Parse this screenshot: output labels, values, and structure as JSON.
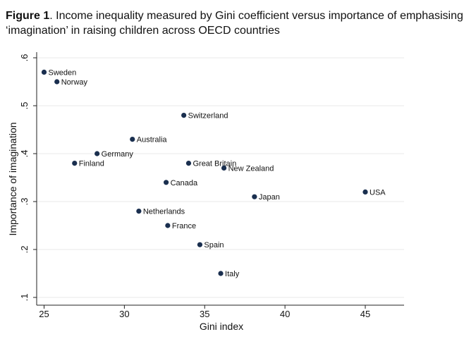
{
  "caption": {
    "label": "Figure 1",
    "text": ". Income inequality measured by Gini coefficient versus importance of emphasising ‘imagination’ in raising children across OECD countries"
  },
  "chart_data": {
    "type": "scatter",
    "title": "",
    "xlabel": "Gini index",
    "ylabel": "Importance of imagination",
    "xlim": [
      24.5,
      47.5
    ],
    "ylim": [
      0.09,
      0.62
    ],
    "xticks": [
      25,
      30,
      35,
      40,
      45
    ],
    "xtick_labels": [
      "25",
      "30",
      "35",
      "40",
      "45"
    ],
    "yticks": [
      0.1,
      0.2,
      0.3,
      0.4,
      0.5,
      0.6
    ],
    "ytick_labels": [
      ".1",
      ".2",
      ".3",
      ".4",
      ".5",
      ".6"
    ],
    "grid": "horizontal",
    "legend": "none",
    "marker_color": "#1a2f4f",
    "points": [
      {
        "label": "Sweden",
        "x": 25.0,
        "y": 0.57
      },
      {
        "label": "Norway",
        "x": 25.8,
        "y": 0.55
      },
      {
        "label": "Switzerland",
        "x": 33.7,
        "y": 0.48
      },
      {
        "label": "Australia",
        "x": 30.5,
        "y": 0.43
      },
      {
        "label": "Germany",
        "x": 28.3,
        "y": 0.4
      },
      {
        "label": "Finland",
        "x": 26.9,
        "y": 0.38
      },
      {
        "label": "Great Britain",
        "x": 34.0,
        "y": 0.38
      },
      {
        "label": "New Zealand",
        "x": 36.2,
        "y": 0.37
      },
      {
        "label": "Canada",
        "x": 32.6,
        "y": 0.34
      },
      {
        "label": "USA",
        "x": 45.0,
        "y": 0.32
      },
      {
        "label": "Japan",
        "x": 38.1,
        "y": 0.31
      },
      {
        "label": "Netherlands",
        "x": 30.9,
        "y": 0.28
      },
      {
        "label": "France",
        "x": 32.7,
        "y": 0.25
      },
      {
        "label": "Spain",
        "x": 34.7,
        "y": 0.21
      },
      {
        "label": "Italy",
        "x": 36.0,
        "y": 0.15
      }
    ]
  }
}
